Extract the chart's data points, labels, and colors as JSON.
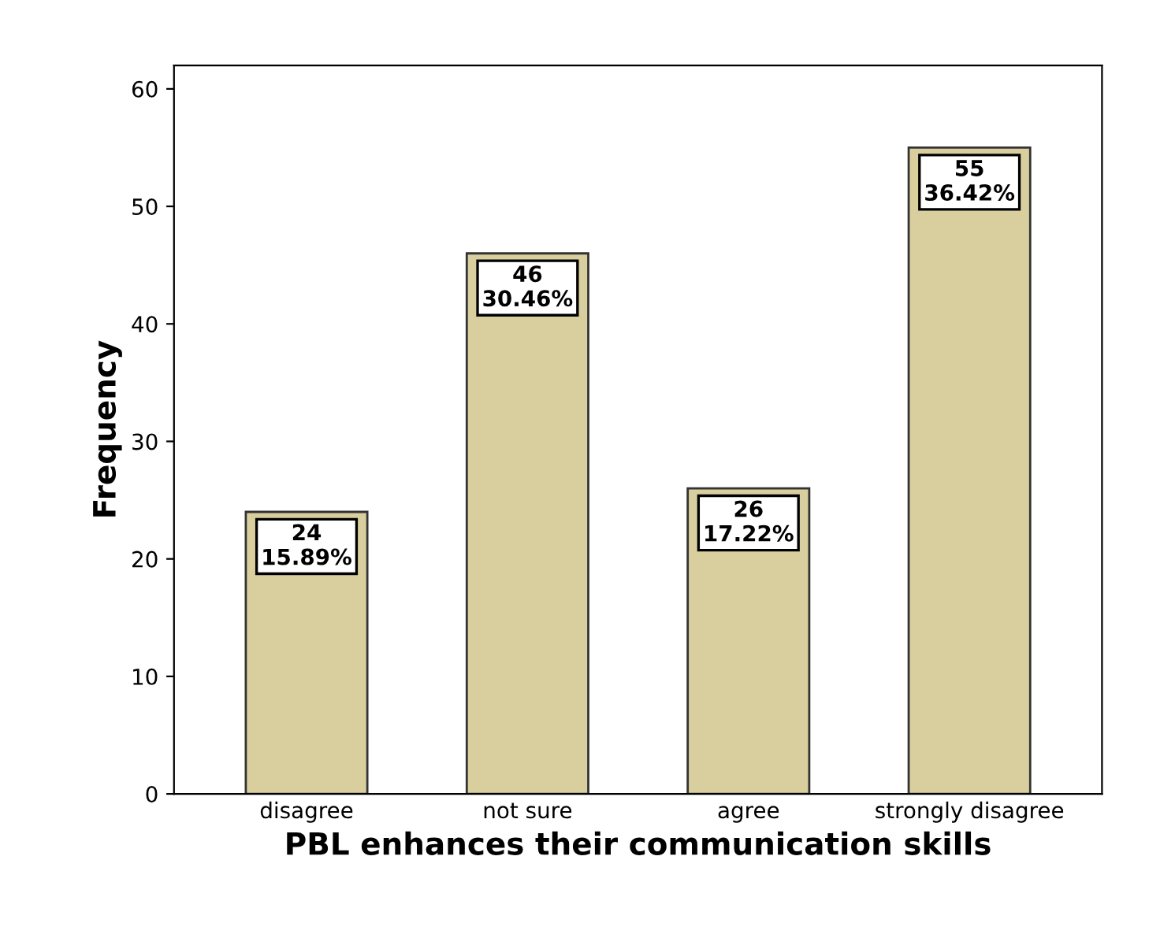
{
  "chart_data": {
    "type": "bar",
    "xlabel": "PBL enhances their communication skills",
    "ylabel": "Frequency",
    "categories": [
      "disagree",
      "not sure",
      "agree",
      "strongly disagree"
    ],
    "values": [
      24,
      46,
      26,
      55
    ],
    "value_labels": [
      "24\n15.89%",
      "46\n30.46%",
      "26\n17.22%",
      "55\n36.42%"
    ],
    "color": "#d9cf9e",
    "ylim": [
      0,
      62
    ],
    "yticks": [
      0,
      10,
      20,
      30,
      40,
      50,
      60
    ],
    "grid": false,
    "legend": false
  }
}
